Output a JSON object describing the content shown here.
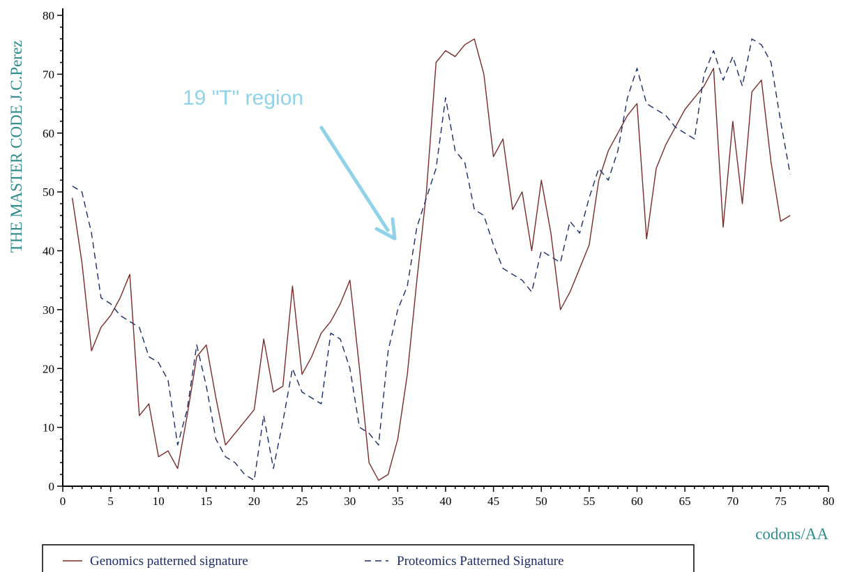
{
  "colors": {
    "axis": "#000000",
    "title_teal": "#2e8b8b",
    "annotation": "#8fd3e8",
    "genomics": "#7a2a2a",
    "proteomics": "#1a2a6a",
    "legend_text": "#1a2a6a"
  },
  "chart_data": {
    "type": "line",
    "ylabel": "THE MASTER CODE J.C.Perez",
    "xlabel": "codons/AA",
    "xlim": [
      0,
      80
    ],
    "ylim": [
      0,
      80
    ],
    "x_ticks": [
      0,
      5,
      10,
      15,
      20,
      25,
      30,
      35,
      40,
      45,
      50,
      55,
      60,
      65,
      70,
      75,
      80
    ],
    "y_ticks": [
      0,
      10,
      20,
      30,
      40,
      50,
      60,
      70,
      80
    ],
    "grid": false,
    "legend_position": "bottom",
    "annotation": {
      "text": "19 \"T\" region",
      "arrow_tip": {
        "x": 36,
        "y": 42
      }
    },
    "series": [
      {
        "name": "Genomics patterned signature",
        "style": "solid",
        "x": [
          1,
          2,
          3,
          4,
          5,
          6,
          7,
          8,
          9,
          10,
          11,
          12,
          13,
          14,
          15,
          16,
          17,
          18,
          19,
          20,
          21,
          22,
          23,
          24,
          25,
          26,
          27,
          28,
          29,
          30,
          31,
          32,
          33,
          34,
          35,
          36,
          37,
          38,
          39,
          40,
          41,
          42,
          43,
          44,
          45,
          46,
          47,
          48,
          49,
          50,
          51,
          52,
          53,
          54,
          55,
          56,
          57,
          58,
          59,
          60,
          61,
          62,
          63,
          64,
          65,
          66,
          67,
          68,
          69,
          70,
          71,
          72,
          73,
          74,
          75,
          76
        ],
        "y": [
          49,
          38,
          23,
          27,
          29,
          32,
          36,
          12,
          14,
          5,
          6,
          3,
          12,
          22,
          24,
          15,
          7,
          9,
          11,
          13,
          25,
          16,
          17,
          34,
          19,
          22,
          26,
          28,
          31,
          35,
          20,
          4,
          1,
          2,
          8,
          19,
          35,
          50,
          72,
          74,
          73,
          75,
          76,
          70,
          56,
          59,
          47,
          50,
          40,
          52,
          43,
          30,
          33,
          37,
          41,
          52,
          57,
          60,
          63,
          65,
          42,
          54,
          58,
          61,
          64,
          66,
          68,
          71,
          44,
          62,
          48,
          67,
          69,
          55,
          45,
          46
        ]
      },
      {
        "name": "Proteomics Patterned Signature",
        "style": "dashed",
        "x": [
          1,
          2,
          3,
          4,
          5,
          6,
          7,
          8,
          9,
          10,
          11,
          12,
          13,
          14,
          15,
          16,
          17,
          18,
          19,
          20,
          21,
          22,
          23,
          24,
          25,
          26,
          27,
          28,
          29,
          30,
          31,
          32,
          33,
          34,
          35,
          36,
          37,
          38,
          39,
          40,
          41,
          42,
          43,
          44,
          45,
          46,
          47,
          48,
          49,
          50,
          51,
          52,
          53,
          54,
          55,
          56,
          57,
          58,
          59,
          60,
          61,
          62,
          63,
          64,
          65,
          66,
          67,
          68,
          69,
          70,
          71,
          72,
          73,
          74,
          75,
          76
        ],
        "y": [
          51,
          50,
          43,
          32,
          31,
          29,
          28,
          27,
          22,
          21,
          18,
          7,
          13,
          24,
          17,
          8,
          5,
          4,
          2,
          1,
          12,
          3,
          11,
          20,
          16,
          15,
          14,
          26,
          25,
          20,
          10,
          9,
          7,
          23,
          30,
          34,
          44,
          49,
          54,
          66,
          57,
          55,
          47,
          46,
          41,
          37,
          36,
          35,
          33,
          40,
          39,
          38,
          45,
          43,
          49,
          54,
          52,
          57,
          66,
          71,
          65,
          64,
          63,
          61,
          60,
          59,
          70,
          74,
          69,
          73,
          68,
          76,
          75,
          72,
          62,
          53
        ]
      }
    ]
  }
}
